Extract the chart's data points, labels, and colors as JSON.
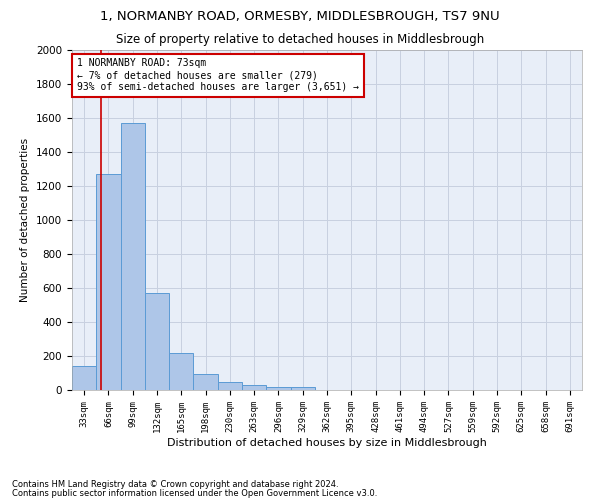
{
  "title1": "1, NORMANBY ROAD, ORMESBY, MIDDLESBROUGH, TS7 9NU",
  "title2": "Size of property relative to detached houses in Middlesbrough",
  "xlabel": "Distribution of detached houses by size in Middlesbrough",
  "ylabel": "Number of detached properties",
  "bin_labels": [
    "33sqm",
    "66sqm",
    "99sqm",
    "132sqm",
    "165sqm",
    "198sqm",
    "230sqm",
    "263sqm",
    "296sqm",
    "329sqm",
    "362sqm",
    "395sqm",
    "428sqm",
    "461sqm",
    "494sqm",
    "527sqm",
    "559sqm",
    "592sqm",
    "625sqm",
    "658sqm",
    "691sqm"
  ],
  "bar_heights": [
    140,
    1270,
    1570,
    570,
    220,
    95,
    50,
    30,
    18,
    15,
    0,
    0,
    0,
    0,
    0,
    0,
    0,
    0,
    0,
    0,
    0
  ],
  "bar_color": "#aec6e8",
  "bar_edge_color": "#5b9bd5",
  "annotation_text": "1 NORMANBY ROAD: 73sqm\n← 7% of detached houses are smaller (279)\n93% of semi-detached houses are larger (3,651) →",
  "annotation_box_color": "#ffffff",
  "annotation_box_edge_color": "#cc0000",
  "ylim": [
    0,
    2000
  ],
  "yticks": [
    0,
    200,
    400,
    600,
    800,
    1000,
    1200,
    1400,
    1600,
    1800,
    2000
  ],
  "footer1": "Contains HM Land Registry data © Crown copyright and database right 2024.",
  "footer2": "Contains public sector information licensed under the Open Government Licence v3.0.",
  "bg_color": "#ffffff",
  "grid_color": "#c8d0e0",
  "red_line_color": "#cc0000",
  "ax_bg_color": "#e8eef8"
}
